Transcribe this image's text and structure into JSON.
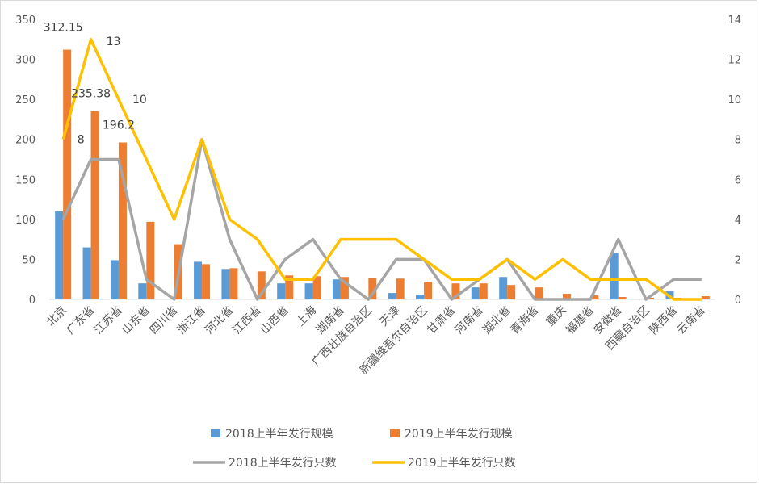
{
  "chart_data": {
    "type": "bar",
    "categories": [
      "北京",
      "广东省",
      "江苏省",
      "山东省",
      "四川省",
      "浙江省",
      "河北省",
      "江西省",
      "山西省",
      "上海",
      "湖南省",
      "广西壮族自治区",
      "天津",
      "新疆维吾尔自治区",
      "甘肃省",
      "河南省",
      "湖北省",
      "青海省",
      "重庆",
      "福建省",
      "安徽省",
      "西藏自治区",
      "陕西省",
      "云南省"
    ],
    "series": [
      {
        "name": "2018上半年发行规模",
        "type": "bar",
        "axis": "left",
        "color": "#5b9bd5",
        "values": [
          110,
          65,
          49,
          20,
          0,
          47,
          38,
          0,
          20,
          20,
          25,
          0,
          8,
          6,
          0,
          15,
          28,
          0,
          0,
          0,
          58,
          0,
          10,
          0
        ]
      },
      {
        "name": "2019上半年发行规模",
        "type": "bar",
        "axis": "left",
        "color": "#ed7d31",
        "values": [
          312.15,
          235.38,
          196.2,
          97,
          69,
          44,
          39,
          35,
          30,
          29,
          28,
          27,
          26,
          22,
          20,
          20,
          18,
          15,
          7,
          5,
          3,
          2,
          2,
          4
        ]
      },
      {
        "name": "2018上半年发行只数",
        "type": "line",
        "axis": "right",
        "color": "#a5a5a5",
        "values": [
          4,
          7,
          7,
          1,
          0,
          8,
          3,
          0,
          2,
          3,
          1,
          0,
          2,
          2,
          0,
          1,
          2,
          0,
          0,
          0,
          3,
          0,
          1,
          1
        ]
      },
      {
        "name": "2019上半年发行只数",
        "type": "line",
        "axis": "right",
        "color": "#ffc000",
        "values": [
          8,
          13,
          10,
          7,
          4,
          8,
          4,
          3,
          1,
          1,
          3,
          3,
          3,
          2,
          1,
          1,
          2,
          1,
          2,
          1,
          1,
          1,
          0,
          0
        ]
      }
    ],
    "data_labels": [
      {
        "series": 1,
        "index": 0,
        "text": "312.15"
      },
      {
        "series": 1,
        "index": 1,
        "text": "235.38"
      },
      {
        "series": 1,
        "index": 2,
        "text": "196.2"
      },
      {
        "series": 3,
        "index": 0,
        "text": "8"
      },
      {
        "series": 3,
        "index": 1,
        "text": "13"
      },
      {
        "series": 3,
        "index": 2,
        "text": "10"
      }
    ],
    "y_left": {
      "min": 0,
      "max": 350,
      "ticks": [
        0,
        50,
        100,
        150,
        200,
        250,
        300,
        350
      ]
    },
    "y_right": {
      "min": 0,
      "max": 14,
      "ticks": [
        0,
        2,
        4,
        6,
        8,
        10,
        12,
        14
      ]
    },
    "grid": false,
    "legend_position": "bottom"
  }
}
